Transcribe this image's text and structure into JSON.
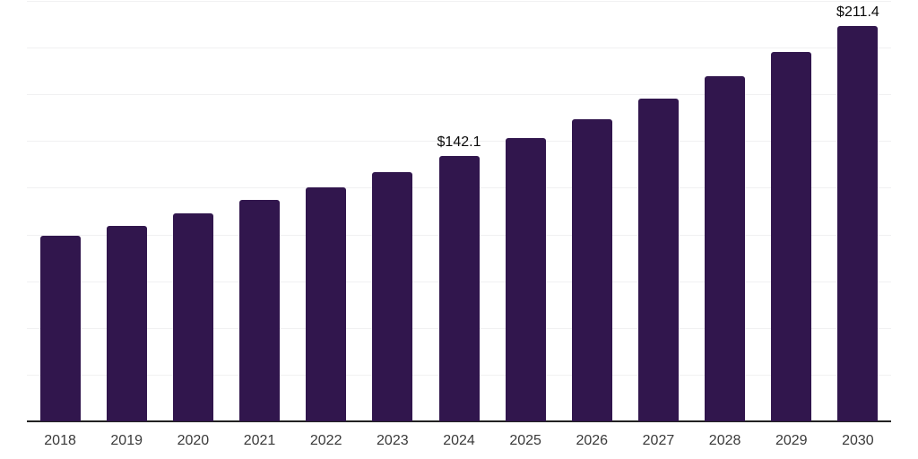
{
  "chart_data": {
    "type": "bar",
    "title": "",
    "xlabel": "",
    "ylabel": "",
    "categories": [
      "2018",
      "2019",
      "2020",
      "2021",
      "2022",
      "2023",
      "2024",
      "2025",
      "2026",
      "2027",
      "2028",
      "2029",
      "2030"
    ],
    "values": [
      99.3,
      104.6,
      111.3,
      118.5,
      125.2,
      133.4,
      142.1,
      151.6,
      161.8,
      172.8,
      184.8,
      197.5,
      211.4
    ],
    "data_labels": [
      {
        "category": "2024",
        "text": "$142.1"
      },
      {
        "category": "2030",
        "text": "$211.4"
      }
    ],
    "ylim": [
      0,
      225
    ],
    "gridline_interval": 25,
    "grid": true,
    "legend": false,
    "colors": {
      "bar": "#31164D",
      "gridline": "#F1F1F2",
      "axis_line": "#222222",
      "tick_label": "#3A3A3A",
      "data_label": "#0A0A0A",
      "background": "#FFFFFF"
    }
  }
}
